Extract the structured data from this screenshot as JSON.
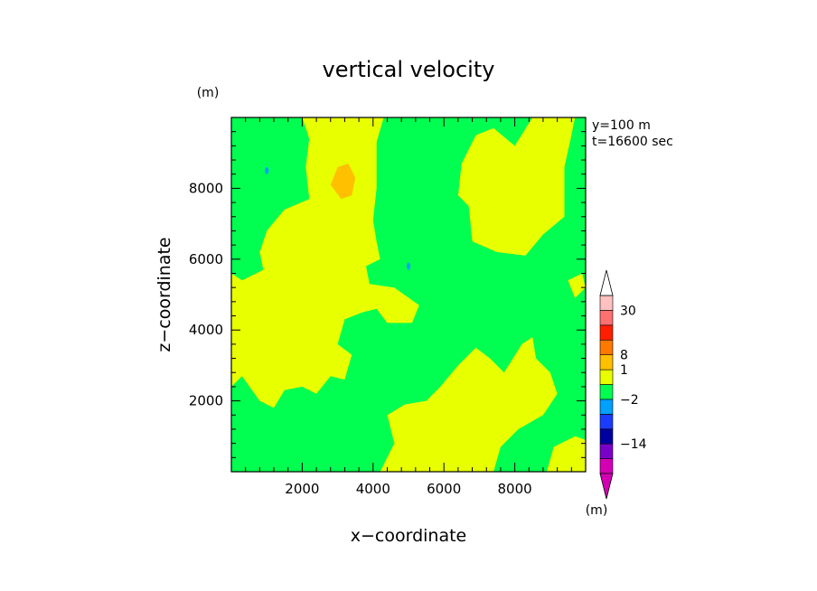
{
  "chart_data": {
    "type": "heatmap",
    "title": "vertical velocity",
    "xlabel": "x−coordinate",
    "ylabel": "z−coordinate",
    "x_unit": "(m)",
    "y_unit": "(m)",
    "xlim": [
      0,
      10000
    ],
    "ylim": [
      0,
      10000
    ],
    "x_ticks": [
      2000,
      4000,
      6000,
      8000
    ],
    "x_tick_labels": [
      "2000",
      "4000",
      "6000",
      "8000"
    ],
    "y_ticks": [
      2000,
      4000,
      6000,
      8000
    ],
    "y_tick_labels": [
      "2000",
      "4000",
      "6000",
      "8000"
    ],
    "annotations": [
      "y=100 m",
      "t=16600 sec"
    ],
    "colorbar": {
      "unit": "(m)",
      "labels": [
        {
          "value": 30,
          "text": "30"
        },
        {
          "value": 8,
          "text": "8"
        },
        {
          "value": 1,
          "text": "1"
        },
        {
          "value": -2,
          "text": "−2"
        },
        {
          "value": -14,
          "text": "−14"
        }
      ],
      "colors": [
        "#d400b4",
        "#7a00c8",
        "#0000a0",
        "#1a3cff",
        "#00a0ff",
        "#00ff50",
        "#e8ff00",
        "#ffc000",
        "#ff7800",
        "#ff1e00",
        "#ff7070",
        "#ffc0c0"
      ],
      "band_colors": [
        "#d400b4",
        "#7a00c8",
        "#0000a0",
        "#1a3cff",
        "#00a0ff",
        "#00ff50",
        "#e8ff00",
        "#ffc000",
        "#ff7800",
        "#ff1e00",
        "#ff7070",
        "#ffc0c0"
      ]
    },
    "background_color": "#00ff50",
    "regions": [
      {
        "name": "positive-upper-left",
        "color": "#e8ff00",
        "points": [
          [
            0,
            2400
          ],
          [
            300,
            2700
          ],
          [
            800,
            2000
          ],
          [
            1200,
            1800
          ],
          [
            1500,
            2300
          ],
          [
            2000,
            2400
          ],
          [
            2400,
            2200
          ],
          [
            2800,
            2700
          ],
          [
            3200,
            2600
          ],
          [
            3400,
            3300
          ],
          [
            3000,
            3600
          ],
          [
            3200,
            4300
          ],
          [
            3700,
            4500
          ],
          [
            4100,
            4600
          ],
          [
            4400,
            4200
          ],
          [
            5100,
            4200
          ],
          [
            5300,
            4700
          ],
          [
            4600,
            5200
          ],
          [
            3900,
            5300
          ],
          [
            3800,
            5800
          ],
          [
            4200,
            6000
          ],
          [
            4100,
            6500
          ],
          [
            4000,
            7100
          ],
          [
            4100,
            8000
          ],
          [
            4100,
            9300
          ],
          [
            4300,
            10000
          ],
          [
            2000,
            10000
          ],
          [
            2200,
            9400
          ],
          [
            2100,
            8600
          ],
          [
            2200,
            7700
          ],
          [
            1500,
            7400
          ],
          [
            1000,
            6800
          ],
          [
            800,
            6200
          ],
          [
            900,
            5700
          ],
          [
            300,
            5400
          ],
          [
            0,
            5600
          ]
        ]
      },
      {
        "name": "positive-upper-right",
        "color": "#e8ff00",
        "points": [
          [
            6900,
            9500
          ],
          [
            6500,
            8700
          ],
          [
            6400,
            7800
          ],
          [
            6700,
            7500
          ],
          [
            6800,
            6500
          ],
          [
            7500,
            6200
          ],
          [
            8300,
            6100
          ],
          [
            8800,
            6700
          ],
          [
            9400,
            7200
          ],
          [
            9400,
            8600
          ],
          [
            9600,
            9500
          ],
          [
            9700,
            10000
          ],
          [
            8500,
            10000
          ],
          [
            8000,
            9200
          ],
          [
            7400,
            9700
          ]
        ]
      },
      {
        "name": "positive-lower-middle",
        "color": "#e8ff00",
        "points": [
          [
            4200,
            0
          ],
          [
            4600,
            800
          ],
          [
            4400,
            1600
          ],
          [
            4900,
            1900
          ],
          [
            5500,
            2000
          ],
          [
            5900,
            2400
          ],
          [
            6400,
            3000
          ],
          [
            6900,
            3500
          ],
          [
            7300,
            3200
          ],
          [
            7700,
            2800
          ],
          [
            8200,
            3600
          ],
          [
            8500,
            3800
          ],
          [
            8600,
            3200
          ],
          [
            9000,
            2800
          ],
          [
            9200,
            2200
          ],
          [
            8800,
            1600
          ],
          [
            8100,
            1200
          ],
          [
            7600,
            700
          ],
          [
            7400,
            0
          ]
        ]
      },
      {
        "name": "positive-lower-right",
        "color": "#e8ff00",
        "points": [
          [
            8900,
            0
          ],
          [
            9100,
            700
          ],
          [
            9700,
            1000
          ],
          [
            10000,
            900
          ],
          [
            10000,
            0
          ]
        ]
      },
      {
        "name": "positive-left-upper",
        "color": "#e8ff00",
        "points": [
          [
            0,
            4600
          ],
          [
            600,
            4500
          ],
          [
            500,
            3900
          ],
          [
            0,
            3800
          ]
        ]
      },
      {
        "name": "positive-right-middle",
        "color": "#e8ff00",
        "points": [
          [
            9500,
            5400
          ],
          [
            9900,
            5600
          ],
          [
            10000,
            5200
          ],
          [
            9700,
            4900
          ]
        ]
      },
      {
        "name": "strong-updraft-core",
        "color": "#ffc000",
        "points": [
          [
            2800,
            8100
          ],
          [
            3100,
            7700
          ],
          [
            3400,
            7800
          ],
          [
            3500,
            8300
          ],
          [
            3300,
            8700
          ],
          [
            3000,
            8600
          ]
        ]
      }
    ],
    "small_cells": [
      {
        "x": 1000,
        "y": 8500,
        "color": "#00a0ff"
      },
      {
        "x": 5000,
        "y": 5800,
        "color": "#00a0ff"
      }
    ]
  }
}
